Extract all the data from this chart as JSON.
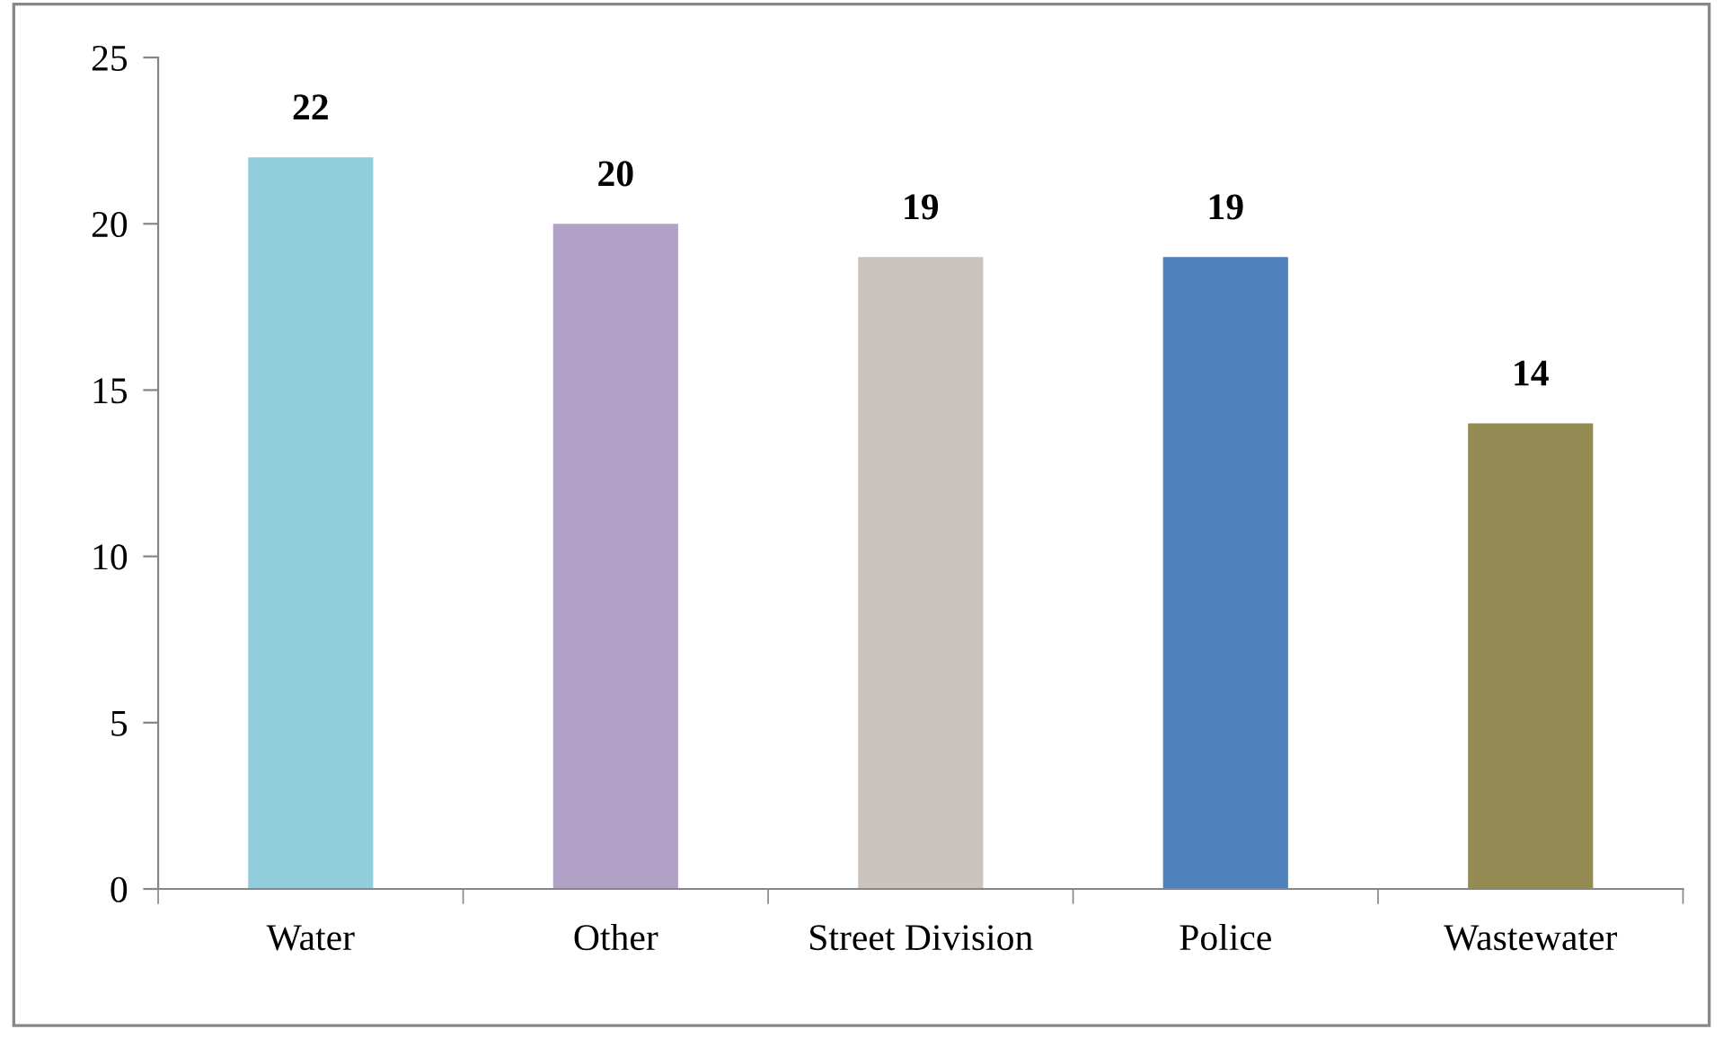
{
  "chart_data": {
    "type": "bar",
    "categories": [
      "Water",
      "Other",
      "Street Division",
      "Police",
      "Wastewater"
    ],
    "values": [
      22,
      20,
      19,
      19,
      14
    ],
    "colors": [
      "#92cddc",
      "#b2a1c7",
      "#cbc3bd",
      "#4f81bd",
      "#948a54"
    ],
    "ylim": [
      0,
      25
    ],
    "yticks": [
      0,
      5,
      10,
      15,
      20,
      25
    ],
    "data_labels": true,
    "grid": false,
    "legend": false
  }
}
